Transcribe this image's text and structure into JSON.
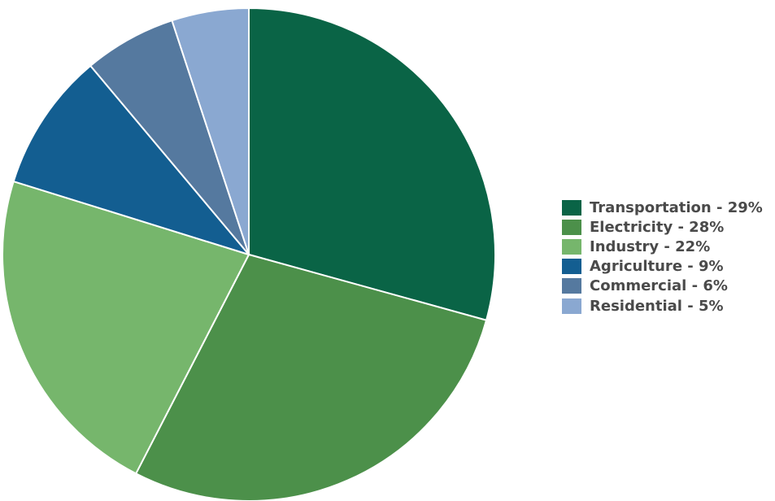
{
  "chart_data": {
    "type": "pie",
    "title": "",
    "categories": [
      "Transportation",
      "Electricity",
      "Industry",
      "Agriculture",
      "Commercial",
      "Residential"
    ],
    "values": [
      29,
      28,
      22,
      9,
      6,
      5
    ],
    "unit": "%",
    "colors": [
      "#0a6446",
      "#4c904a",
      "#76b66c",
      "#135e91",
      "#55799f",
      "#8aa8d1"
    ],
    "start_angle": "12 o'clock, clockwise",
    "legend": {
      "position": "right",
      "labels": [
        "Transportation - 29%",
        "Electricity - 28%",
        "Industry - 22%",
        "Agriculture - 9%",
        "Commercial - 6%",
        "Residential - 5%"
      ]
    }
  }
}
